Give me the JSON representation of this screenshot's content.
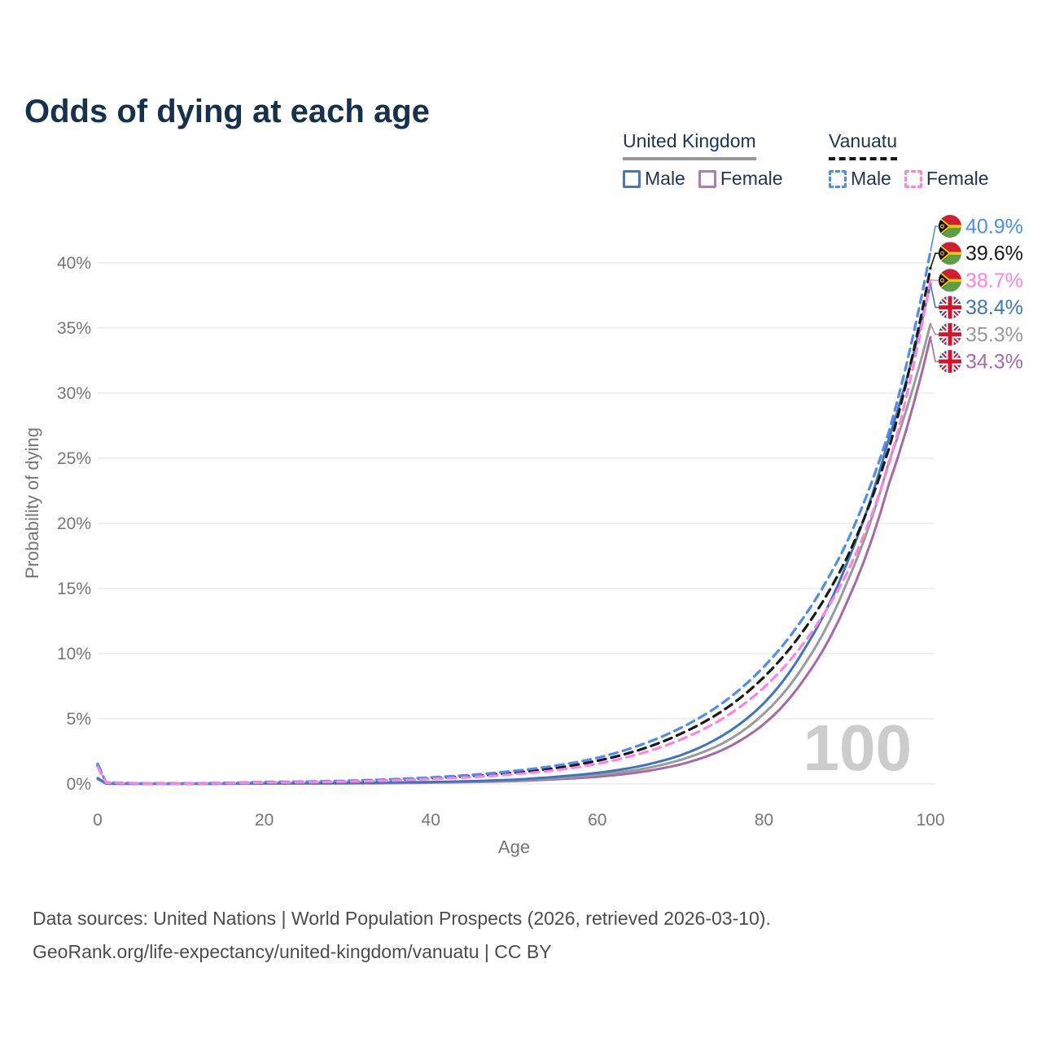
{
  "title": "Odds of dying at each age",
  "legend": {
    "groups": [
      {
        "name": "United Kingdom",
        "line_style": "solid",
        "underline_color": "#999999",
        "items": [
          {
            "label": "Male",
            "color": "#4a77bb",
            "dashed": false
          },
          {
            "label": "Female",
            "color": "#b07ab2",
            "dashed": false
          }
        ]
      },
      {
        "name": "Vanuatu",
        "line_style": "dashed",
        "underline_color": "#141414",
        "items": [
          {
            "label": "Male",
            "color": "#4d8cf2",
            "dashed": true
          },
          {
            "label": "Female",
            "color": "#ff82e0",
            "dashed": true
          }
        ]
      }
    ]
  },
  "watermark": "100",
  "footer": {
    "line1": "Data sources: United Nations | World Population Prospects (2026, retrieved 2026-03-10).",
    "line2": "GeoRank.org/life-expectancy/united-kingdom/vanuatu | CC BY"
  },
  "colors": {
    "title": "#16314e",
    "axis_text": "#767676",
    "grid": "#ececec",
    "watermark": "#cccccc",
    "label_black": "#1a1a1a"
  },
  "chart_data": {
    "type": "line",
    "title": "Odds of dying at each age",
    "xlabel": "Age",
    "ylabel": "Probability of dying",
    "xlim": [
      0,
      100
    ],
    "ylim": [
      0,
      40
    ],
    "xticks": [
      0,
      20,
      40,
      60,
      80,
      100
    ],
    "yticks": [
      0,
      5,
      10,
      15,
      20,
      25,
      30,
      35,
      40
    ],
    "ytick_suffix": "%",
    "grid": true,
    "legend_position": "top-right",
    "x": [
      0,
      1,
      5,
      10,
      15,
      20,
      25,
      30,
      35,
      40,
      45,
      50,
      55,
      60,
      65,
      70,
      75,
      80,
      85,
      90,
      95,
      100
    ],
    "series": [
      {
        "name": "United Kingdom Female",
        "color": "#a569a8",
        "dashed": false,
        "flag": "uk",
        "end_label": "34.3%",
        "values": [
          0.38,
          0.03,
          0.01,
          0.01,
          0.02,
          0.03,
          0.03,
          0.04,
          0.06,
          0.1,
          0.15,
          0.22,
          0.36,
          0.55,
          0.9,
          1.5,
          2.6,
          4.6,
          8.2,
          14.0,
          23.0,
          34.3
        ]
      },
      {
        "name": "United Kingdom (both sexes)",
        "color": "#9a9a9a",
        "dashed": false,
        "flag": "uk",
        "end_label": "35.3%",
        "values": [
          0.42,
          0.03,
          0.01,
          0.01,
          0.025,
          0.04,
          0.045,
          0.06,
          0.08,
          0.12,
          0.18,
          0.27,
          0.45,
          0.7,
          1.1,
          1.85,
          3.1,
          5.4,
          9.3,
          15.5,
          24.7,
          35.3
        ]
      },
      {
        "name": "United Kingdom Male",
        "color": "#3c74c0",
        "dashed": false,
        "flag": "uk",
        "end_label": "38.4%",
        "values": [
          0.45,
          0.03,
          0.01,
          0.01,
          0.03,
          0.05,
          0.06,
          0.08,
          0.11,
          0.15,
          0.22,
          0.33,
          0.55,
          0.85,
          1.35,
          2.2,
          3.7,
          6.2,
          10.5,
          17.0,
          26.5,
          38.4
        ]
      },
      {
        "name": "Vanuatu (both sexes)",
        "color": "#1a1a1a",
        "dashed": true,
        "flag": "vanuatu",
        "end_label": "39.6%",
        "values": [
          1.43,
          0.11,
          0.045,
          0.035,
          0.07,
          0.13,
          0.15,
          0.21,
          0.3,
          0.44,
          0.61,
          0.87,
          1.22,
          1.78,
          2.6,
          3.85,
          5.6,
          8.2,
          12.0,
          17.4,
          25.7,
          39.6
        ]
      },
      {
        "name": "Vanuatu Male",
        "color": "#4d8cf2",
        "dashed": true,
        "flag": "vanuatu",
        "end_label": "40.9%",
        "values": [
          1.55,
          0.12,
          0.05,
          0.04,
          0.08,
          0.15,
          0.18,
          0.25,
          0.35,
          0.5,
          0.7,
          1.0,
          1.4,
          2.0,
          2.95,
          4.3,
          6.2,
          9.0,
          13.0,
          18.6,
          27.0,
          40.9
        ]
      },
      {
        "name": "Vanuatu Female",
        "color": "#ff82e0",
        "dashed": true,
        "flag": "vanuatu",
        "end_label": "38.7%",
        "values": [
          1.3,
          0.1,
          0.04,
          0.03,
          0.06,
          0.11,
          0.13,
          0.18,
          0.26,
          0.38,
          0.52,
          0.75,
          1.05,
          1.55,
          2.3,
          3.4,
          5.0,
          7.4,
          11.0,
          16.2,
          24.5,
          38.7
        ]
      }
    ]
  }
}
